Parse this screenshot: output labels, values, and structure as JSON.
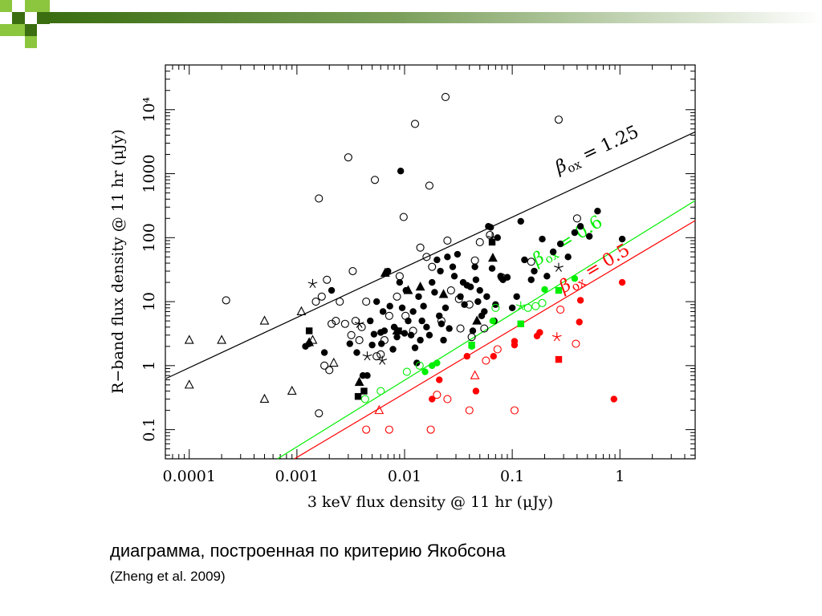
{
  "slide": {
    "caption": "диаграмма, построенная по критерию Якобсона",
    "citation": "(Zheng et al. 2009)",
    "header_colors": {
      "dark_green": "#3a6e10",
      "light_green": "#8cc63e",
      "gradient_end": "#ffffff"
    }
  },
  "chart_data": {
    "type": "scatter",
    "xlabel": "3 keV flux density @ 11 hr (μJy)",
    "ylabel": "R−band flux density @ 11 hr (μJy)",
    "x_scale": "log",
    "y_scale": "log",
    "xlim": [
      6e-05,
      5
    ],
    "ylim": [
      0.035,
      50000
    ],
    "x_tick_labels": [
      {
        "value": 0.0001,
        "label": "0.0001"
      },
      {
        "value": 0.001,
        "label": "0.001"
      },
      {
        "value": 0.01,
        "label": "0.01"
      },
      {
        "value": 0.1,
        "label": "0.1"
      },
      {
        "value": 1,
        "label": "1"
      }
    ],
    "y_tick_labels": [
      {
        "value": 0.1,
        "label": "0.1"
      },
      {
        "value": 1,
        "label": "1"
      },
      {
        "value": 10,
        "label": "10"
      },
      {
        "value": 100,
        "label": "100"
      },
      {
        "value": 1000,
        "label": "1000"
      },
      {
        "value": 10000,
        "label": "10⁴"
      }
    ],
    "lines": [
      {
        "name": "β_ox = 1.25",
        "color": "#000000",
        "points": [
          [
            6.1e-05,
            0.63
          ],
          [
            5,
            4500
          ]
        ],
        "label_beta": "β",
        "label_sub": "ox",
        "label_rest": " = 1.25",
        "label_at": [
          0.27,
          1000
        ]
      },
      {
        "name": "β_ox = 0.6",
        "color": "#00ee00",
        "points": [
          [
            0.00066,
            0.035
          ],
          [
            5,
            380
          ]
        ],
        "label_beta": "β",
        "label_sub": "ox",
        "label_rest": " = 0.6",
        "label_at": [
          0.17,
          36
        ]
      },
      {
        "name": "β_ox = 0.5",
        "color": "#ff0000",
        "points": [
          [
            0.00095,
            0.035
          ],
          [
            5,
            185
          ]
        ],
        "label_beta": "β",
        "label_sub": "ox",
        "label_rest": " = 0.5",
        "label_at": [
          0.3,
          13.5
        ]
      }
    ],
    "series": [
      {
        "marker": "circle-filled",
        "color": "#000000",
        "points": [
          [
            0.0012,
            2.0
          ],
          [
            0.0013,
            2.2
          ],
          [
            0.0018,
            1.6
          ],
          [
            0.0021,
            15
          ],
          [
            0.0031,
            2.2
          ],
          [
            0.0036,
            1.6
          ],
          [
            0.0041,
            0.7
          ],
          [
            0.0045,
            0.7
          ],
          [
            0.0048,
            5
          ],
          [
            0.005,
            2.1
          ],
          [
            0.0052,
            3.1
          ],
          [
            0.0055,
            10
          ],
          [
            0.006,
            3.3
          ],
          [
            0.0061,
            2.2
          ],
          [
            0.0063,
            7
          ],
          [
            0.0065,
            3.5
          ],
          [
            0.007,
            30
          ],
          [
            0.0073,
            8.5
          ],
          [
            0.0078,
            1.8
          ],
          [
            0.008,
            4
          ],
          [
            0.0085,
            2.8
          ],
          [
            0.009,
            20
          ],
          [
            0.0092,
            1100
          ],
          [
            0.0095,
            8
          ],
          [
            0.01,
            3.2
          ],
          [
            0.0103,
            15
          ],
          [
            0.0108,
            5
          ],
          [
            0.0115,
            3
          ],
          [
            0.012,
            7
          ],
          [
            0.0125,
            1.9
          ],
          [
            0.013,
            1.1
          ],
          [
            0.0135,
            12
          ],
          [
            0.014,
            2.5
          ],
          [
            0.0145,
            5
          ],
          [
            0.015,
            8.5
          ],
          [
            0.016,
            4
          ],
          [
            0.017,
            3
          ],
          [
            0.018,
            20
          ],
          [
            0.019,
            14
          ],
          [
            0.02,
            45
          ],
          [
            0.021,
            6
          ],
          [
            0.0215,
            30
          ],
          [
            0.022,
            4.5
          ],
          [
            0.023,
            2.5
          ],
          [
            0.024,
            8
          ],
          [
            0.025,
            50
          ],
          [
            0.026,
            3.8
          ],
          [
            0.028,
            35
          ],
          [
            0.029,
            25
          ],
          [
            0.031,
            55
          ],
          [
            0.033,
            12
          ],
          [
            0.035,
            20
          ],
          [
            0.036,
            9
          ],
          [
            0.038,
            18
          ],
          [
            0.041,
            17
          ],
          [
            0.043,
            3.5
          ],
          [
            0.045,
            35
          ],
          [
            0.046,
            22
          ],
          [
            0.048,
            10
          ],
          [
            0.05,
            15
          ],
          [
            0.052,
            6
          ],
          [
            0.055,
            7
          ],
          [
            0.058,
            12
          ],
          [
            0.06,
            150
          ],
          [
            0.063,
            145
          ],
          [
            0.065,
            33
          ],
          [
            0.068,
            5
          ],
          [
            0.07,
            9
          ],
          [
            0.073,
            100
          ],
          [
            0.078,
            25
          ],
          [
            0.082,
            22
          ],
          [
            0.09,
            24
          ],
          [
            0.1,
            8
          ],
          [
            0.11,
            12
          ],
          [
            0.12,
            180
          ],
          [
            0.13,
            45
          ],
          [
            0.15,
            22
          ],
          [
            0.16,
            30
          ],
          [
            0.19,
            95
          ],
          [
            0.21,
            25
          ],
          [
            0.24,
            60
          ],
          [
            0.28,
            80
          ],
          [
            0.33,
            50
          ],
          [
            0.38,
            120
          ],
          [
            0.43,
            150
          ],
          [
            0.52,
            105
          ],
          [
            0.62,
            260
          ],
          [
            1.05,
            95
          ]
        ]
      },
      {
        "marker": "circle-open",
        "color": "#000000",
        "points": [
          [
            0.0016,
            410
          ],
          [
            0.0016,
            0.18
          ],
          [
            0.0017,
            12
          ],
          [
            0.0015,
            10
          ],
          [
            0.0018,
            1.0
          ],
          [
            0.0019,
            22
          ],
          [
            0.002,
            0.85
          ],
          [
            0.0021,
            4.5
          ],
          [
            0.0023,
            5
          ],
          [
            0.0025,
            10
          ],
          [
            0.0028,
            4.5
          ],
          [
            0.003,
            1800
          ],
          [
            0.0032,
            3
          ],
          [
            0.0033,
            30
          ],
          [
            0.0035,
            5
          ],
          [
            0.0038,
            2.5
          ],
          [
            0.004,
            4
          ],
          [
            0.0044,
            10
          ],
          [
            0.0053,
            800
          ],
          [
            0.0055,
            1.4
          ],
          [
            0.006,
            1.5
          ],
          [
            0.0065,
            2.5
          ],
          [
            0.0072,
            6
          ],
          [
            0.0085,
            12
          ],
          [
            0.009,
            25
          ],
          [
            0.0098,
            210
          ],
          [
            0.0102,
            6
          ],
          [
            0.012,
            3.5
          ],
          [
            0.0125,
            6000
          ],
          [
            0.014,
            70
          ],
          [
            0.016,
            50
          ],
          [
            0.017,
            650
          ],
          [
            0.018,
            35
          ],
          [
            0.022,
            5
          ],
          [
            0.024,
            15800
          ],
          [
            0.025,
            90
          ],
          [
            0.027,
            15
          ],
          [
            0.032,
            11
          ],
          [
            0.033,
            3.8
          ],
          [
            0.04,
            9
          ],
          [
            0.042,
            2.8
          ],
          [
            0.045,
            44
          ],
          [
            0.05,
            85
          ],
          [
            0.055,
            3.8
          ],
          [
            0.062,
            110
          ],
          [
            0.08,
            24
          ],
          [
            0.15,
            42
          ],
          [
            0.27,
            7000
          ],
          [
            0.4,
            200
          ],
          [
            0.00022,
            10.5
          ]
        ]
      },
      {
        "marker": "triangle-filled",
        "color": "#000000",
        "points": [
          [
            0.0013,
            2.3
          ],
          [
            0.0038,
            0.55
          ],
          [
            0.0066,
            28
          ],
          [
            0.0085,
            3.5
          ],
          [
            0.0108,
            15
          ],
          [
            0.014,
            17
          ],
          [
            0.023,
            13
          ],
          [
            0.047,
            5
          ],
          [
            0.066,
            48
          ]
        ]
      },
      {
        "marker": "triangle-open",
        "color": "#000000",
        "points": [
          [
            0.0001,
            2.5
          ],
          [
            0.0001,
            0.5
          ],
          [
            0.0002,
            2.5
          ],
          [
            0.0005,
            5
          ],
          [
            0.0005,
            0.3
          ],
          [
            0.0009,
            0.4
          ],
          [
            0.0014,
            2.5
          ],
          [
            0.0011,
            7
          ],
          [
            0.0022,
            1.1
          ]
        ]
      },
      {
        "marker": "square-filled",
        "color": "#000000",
        "points": [
          [
            0.0013,
            3.5
          ],
          [
            0.0037,
            0.33
          ],
          [
            0.0042,
            0.4
          ],
          [
            0.0088,
            3.5
          ],
          [
            0.065,
            85
          ]
        ]
      },
      {
        "marker": "star",
        "color": "#000000",
        "points": [
          [
            0.0014,
            19
          ],
          [
            0.0038,
            4.5
          ],
          [
            0.0045,
            1.4
          ],
          [
            0.0062,
            1.2
          ],
          [
            0.27,
            34
          ],
          [
            0.065,
            100
          ]
        ]
      },
      {
        "marker": "circle-open",
        "color": "#00ee00",
        "points": [
          [
            0.0043,
            0.3
          ],
          [
            0.006,
            0.4
          ],
          [
            0.0105,
            0.8
          ],
          [
            0.0138,
            1.0
          ],
          [
            0.07,
            8
          ],
          [
            0.14,
            8
          ],
          [
            0.165,
            8.5
          ],
          [
            0.19,
            9.5
          ]
        ]
      },
      {
        "marker": "circle-filled",
        "color": "#00ee00",
        "points": [
          [
            0.0155,
            0.8
          ],
          [
            0.018,
            1.0
          ],
          [
            0.02,
            1.1
          ],
          [
            0.042,
            2.0
          ],
          [
            0.066,
            5
          ],
          [
            0.2,
            15.5
          ],
          [
            0.38,
            23
          ]
        ]
      },
      {
        "marker": "square-filled",
        "color": "#00ee00",
        "points": [
          [
            0.042,
            2.1
          ],
          [
            0.12,
            4.5
          ],
          [
            0.27,
            15
          ]
        ]
      },
      {
        "marker": "star",
        "color": "#00ee00",
        "points": [
          [
            0.12,
            8.5
          ]
        ]
      },
      {
        "marker": "circle-filled",
        "color": "#ff0000",
        "points": [
          [
            0.018,
            0.3
          ],
          [
            0.021,
            0.6
          ],
          [
            0.038,
            1.4
          ],
          [
            0.046,
            0.4
          ],
          [
            0.067,
            1.4
          ],
          [
            0.105,
            2.1
          ],
          [
            0.105,
            2.4
          ],
          [
            0.17,
            2.9
          ],
          [
            0.18,
            3.3
          ],
          [
            0.42,
            4.8
          ],
          [
            0.43,
            10.5
          ],
          [
            0.88,
            0.3
          ],
          [
            1.05,
            20
          ]
        ]
      },
      {
        "marker": "circle-open",
        "color": "#ff0000",
        "points": [
          [
            0.0044,
            0.1
          ],
          [
            0.0072,
            0.1
          ],
          [
            0.0175,
            0.1
          ],
          [
            0.02,
            0.35
          ],
          [
            0.025,
            0.3
          ],
          [
            0.04,
            0.2
          ],
          [
            0.057,
            1.2
          ],
          [
            0.073,
            1.8
          ],
          [
            0.105,
            0.2
          ],
          [
            0.28,
            7.5
          ],
          [
            0.39,
            2.2
          ]
        ]
      },
      {
        "marker": "triangle-open",
        "color": "#ff0000",
        "points": [
          [
            0.0058,
            0.2
          ],
          [
            0.045,
            0.7
          ]
        ]
      },
      {
        "marker": "square-filled",
        "color": "#ff0000",
        "points": [
          [
            0.27,
            1.25
          ]
        ]
      },
      {
        "marker": "star",
        "color": "#ff0000",
        "points": [
          [
            0.26,
            2.8
          ]
        ]
      }
    ]
  }
}
